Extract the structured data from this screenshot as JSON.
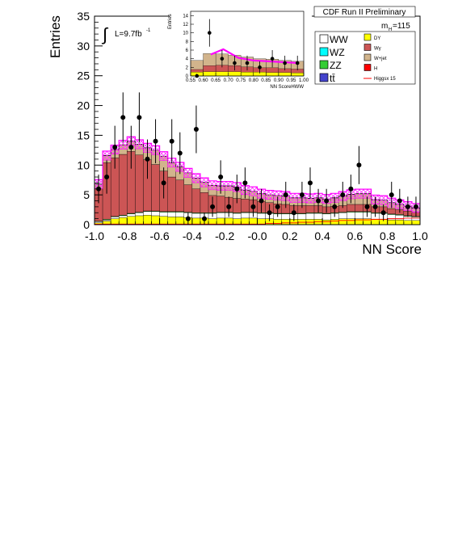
{
  "chart_data": {
    "type": "histogram",
    "title": "CDF Run II Preliminary",
    "xlabel": "NN Score",
    "ylabel": "Entries",
    "xlim": [
      -1.0,
      1.0
    ],
    "ylim": [
      0,
      35
    ],
    "x_ticks": [
      "-1.0",
      "-0.8",
      "-0.6",
      "-0.4",
      "-0.2",
      "-0.0",
      "0.2",
      "0.4",
      "0.6",
      "0.8",
      "1.0"
    ],
    "y_ticks": [
      "0",
      "5",
      "10",
      "15",
      "20",
      "25",
      "30",
      "35"
    ],
    "lumi_label": "L=9.7fb",
    "lumi_sup": "-1",
    "mass_label": "m",
    "mass_sub": "H",
    "mass_value": "=115",
    "bin_edges": [
      -1.0,
      -0.95,
      -0.9,
      -0.85,
      -0.8,
      -0.75,
      -0.7,
      -0.65,
      -0.6,
      -0.55,
      -0.5,
      -0.45,
      -0.4,
      -0.35,
      -0.3,
      -0.25,
      -0.2,
      -0.15,
      -0.1,
      -0.05,
      0.0,
      0.05,
      0.1,
      0.15,
      0.2,
      0.25,
      0.3,
      0.35,
      0.4,
      0.45,
      0.5,
      0.55,
      0.6,
      0.65,
      0.7,
      0.75,
      0.8,
      0.85,
      0.9,
      0.95,
      1.0
    ],
    "stack": [
      {
        "name": "DY",
        "color": "#ffff00",
        "values": [
          0.3,
          0.6,
          1.0,
          1.2,
          1.4,
          1.5,
          1.6,
          1.5,
          1.4,
          1.3,
          1.3,
          1.2,
          1.1,
          1.1,
          1.0,
          1.1,
          1.1,
          1.0,
          1.1,
          1.1,
          1.0,
          1.0,
          0.9,
          0.9,
          0.9,
          0.9,
          0.9,
          0.9,
          0.8,
          0.9,
          1.0,
          1.0,
          1.0,
          1.0,
          0.9,
          0.9,
          0.8,
          0.8,
          0.7,
          0.7
        ]
      },
      {
        "name": "WW",
        "color": "#ffffff",
        "values": [
          0.2,
          0.2,
          0.3,
          0.3,
          0.4,
          0.5,
          0.6,
          0.7,
          0.7,
          0.8,
          0.8,
          0.8,
          0.8,
          0.8,
          0.9,
          0.9,
          0.9,
          0.9,
          0.9,
          0.9,
          0.9,
          0.9,
          0.9,
          0.9,
          0.9,
          0.9,
          1.0,
          1.0,
          1.0,
          1.0,
          1.0,
          1.1,
          1.1,
          1.1,
          1.0,
          1.0,
          0.9,
          0.8,
          0.7,
          0.6
        ]
      },
      {
        "name": "ZZ",
        "color": "#33cc33",
        "values": [
          0.1,
          0.1,
          0.1,
          0.1,
          0.1,
          0.1,
          0.1,
          0.1,
          0.1,
          0.1,
          0.1,
          0.1,
          0.1,
          0.1,
          0.1,
          0.1,
          0.1,
          0.1,
          0.1,
          0.1,
          0.1,
          0.1,
          0.1,
          0.1,
          0.1,
          0.1,
          0.1,
          0.1,
          0.1,
          0.1,
          0.1,
          0.1,
          0.1,
          0.1,
          0.1,
          0.1,
          0.1,
          0.1,
          0.1,
          0.1
        ]
      },
      {
        "name": "Wγ",
        "color": "#cc5555",
        "values": [
          5.4,
          9.5,
          9.8,
          10.2,
          10.4,
          9.6,
          8.6,
          7.8,
          6.8,
          5.8,
          5.3,
          4.6,
          4.0,
          3.4,
          2.9,
          2.7,
          2.5,
          2.4,
          2.2,
          2.1,
          1.9,
          1.7,
          1.6,
          1.5,
          1.3,
          1.3,
          1.2,
          1.2,
          1.1,
          1.1,
          1.1,
          1.2,
          1.2,
          1.2,
          1.0,
          1.0,
          0.9,
          0.8,
          0.8,
          0.7
        ]
      },
      {
        "name": "W+jet",
        "color": "#d2b48c",
        "values": [
          0.8,
          1.2,
          1.4,
          1.6,
          1.7,
          1.8,
          2.0,
          2.4,
          2.5,
          2.4,
          2.2,
          2.0,
          1.8,
          1.7,
          1.7,
          1.7,
          1.9,
          1.9,
          1.5,
          1.4,
          1.3,
          1.3,
          1.4,
          1.4,
          1.3,
          1.3,
          1.2,
          1.3,
          1.3,
          1.4,
          1.6,
          1.7,
          1.8,
          1.8,
          1.2,
          1.1,
          1.0,
          0.9,
          0.8,
          0.7
        ]
      }
    ],
    "band_halfwidth": 0.75,
    "higgs": {
      "name": "Higgsx 15",
      "color": "#ff0000",
      "values": [
        0.1,
        0.1,
        0.1,
        0.1,
        0.1,
        0.1,
        0.1,
        0.1,
        0.1,
        0.1,
        0.1,
        0.1,
        0.1,
        0.1,
        0.1,
        0.1,
        0.1,
        0.1,
        0.1,
        0.1,
        0.1,
        0.2,
        0.2,
        0.3,
        0.3,
        0.4,
        0.4,
        0.5,
        0.5,
        0.6,
        0.7,
        0.7,
        0.8,
        0.8,
        0.9,
        0.9,
        1.0,
        1.0,
        1.1,
        1.1
      ]
    },
    "data": [
      {
        "x": -0.975,
        "y": 6,
        "err": 2.4
      },
      {
        "x": -0.925,
        "y": 8,
        "err": 2.8
      },
      {
        "x": -0.875,
        "y": 13,
        "err": 3.6
      },
      {
        "x": -0.825,
        "y": 18,
        "err": 4.2
      },
      {
        "x": -0.775,
        "y": 13,
        "err": 3.6
      },
      {
        "x": -0.725,
        "y": 18,
        "err": 4.2
      },
      {
        "x": -0.675,
        "y": 11,
        "err": 3.3
      },
      {
        "x": -0.625,
        "y": 14,
        "err": 3.7
      },
      {
        "x": -0.575,
        "y": 7,
        "err": 2.6
      },
      {
        "x": -0.525,
        "y": 14,
        "err": 3.7
      },
      {
        "x": -0.475,
        "y": 12,
        "err": 3.5
      },
      {
        "x": -0.425,
        "y": 1,
        "err": 1.0
      },
      {
        "x": -0.375,
        "y": 16,
        "err": 4.0
      },
      {
        "x": -0.325,
        "y": 1,
        "err": 1.0
      },
      {
        "x": -0.275,
        "y": 3,
        "err": 1.7
      },
      {
        "x": -0.225,
        "y": 8,
        "err": 2.8
      },
      {
        "x": -0.175,
        "y": 3,
        "err": 1.7
      },
      {
        "x": -0.125,
        "y": 6,
        "err": 2.4
      },
      {
        "x": -0.075,
        "y": 7,
        "err": 2.6
      },
      {
        "x": -0.025,
        "y": 3,
        "err": 1.7
      },
      {
        "x": 0.025,
        "y": 4,
        "err": 2.0
      },
      {
        "x": 0.075,
        "y": 2,
        "err": 1.4
      },
      {
        "x": 0.125,
        "y": 3,
        "err": 1.7
      },
      {
        "x": 0.175,
        "y": 5,
        "err": 2.2
      },
      {
        "x": 0.225,
        "y": 2,
        "err": 1.4
      },
      {
        "x": 0.275,
        "y": 5,
        "err": 2.2
      },
      {
        "x": 0.325,
        "y": 7,
        "err": 2.6
      },
      {
        "x": 0.375,
        "y": 4,
        "err": 2.0
      },
      {
        "x": 0.425,
        "y": 4,
        "err": 2.0
      },
      {
        "x": 0.475,
        "y": 3,
        "err": 1.7
      },
      {
        "x": 0.525,
        "y": 5,
        "err": 2.2
      },
      {
        "x": 0.575,
        "y": 6,
        "err": 2.4
      },
      {
        "x": 0.625,
        "y": 10,
        "err": 3.2
      },
      {
        "x": 0.675,
        "y": 3,
        "err": 1.7
      },
      {
        "x": 0.725,
        "y": 3,
        "err": 1.7
      },
      {
        "x": 0.775,
        "y": 2,
        "err": 1.4
      },
      {
        "x": 0.825,
        "y": 5,
        "err": 2.2
      },
      {
        "x": 0.875,
        "y": 4,
        "err": 2.0
      },
      {
        "x": 0.925,
        "y": 3,
        "err": 1.7
      },
      {
        "x": 0.975,
        "y": 3,
        "err": 1.7
      }
    ],
    "legend": [
      {
        "label": "WW",
        "color": "#ffffff",
        "column": 1
      },
      {
        "label": "WZ",
        "color": "#00ffff",
        "column": 1
      },
      {
        "label": "ZZ",
        "color": "#33cc33",
        "column": 1
      },
      {
        "label": "tt̄",
        "color": "#4444cc",
        "column": 1
      },
      {
        "label": "DY",
        "color": "#ffff00",
        "column": 2
      },
      {
        "label": "Wγ",
        "color": "#cc5555",
        "column": 2
      },
      {
        "label": "W+jet",
        "color": "#d2b48c",
        "column": 2
      },
      {
        "label": "H",
        "color": "#ff0000",
        "column": 2
      },
      {
        "label": "Higgsx 15",
        "color": "#ff0000",
        "column": 2,
        "style": "line"
      }
    ],
    "inset": {
      "type": "histogram",
      "xlabel": "NN ScoreHWW",
      "ylabel": "Entries",
      "xlim": [
        0.55,
        1.0
      ],
      "ylim": [
        0,
        15
      ],
      "x_ticks": [
        "0.55",
        "0.60",
        "0.65",
        "0.70",
        "0.75",
        "0.80",
        "0.85",
        "0.90",
        "0.95",
        "1.00"
      ],
      "y_ticks": [
        "0",
        "2",
        "4",
        "6",
        "8",
        "10",
        "12",
        "14"
      ],
      "bin_edges": [
        0.55,
        0.6,
        0.65,
        0.7,
        0.75,
        0.8,
        0.85,
        0.9,
        0.95,
        1.0
      ],
      "stack_total": [
        3.6,
        5.2,
        5.1,
        4.8,
        4.4,
        4.0,
        3.9,
        3.6,
        3.4
      ],
      "dy": [
        0.9,
        1.0,
        1.0,
        1.0,
        0.9,
        0.9,
        0.8,
        0.8,
        0.7
      ],
      "wgamma": [
        1.5,
        2.4,
        2.5,
        2.4,
        2.1,
        1.9,
        1.9,
        1.7,
        1.6
      ],
      "signal_x": [
        0.63,
        0.68,
        0.74,
        0.8,
        0.86,
        0.92,
        0.98
      ],
      "signal_y": [
        5.0,
        6.2,
        4.2,
        3.6,
        3.4,
        3.2,
        3.0
      ],
      "data": [
        {
          "x": 0.575,
          "y": 0,
          "err": 0.5
        },
        {
          "x": 0.625,
          "y": 10,
          "err": 3.2
        },
        {
          "x": 0.675,
          "y": 4,
          "err": 2.0
        },
        {
          "x": 0.725,
          "y": 3,
          "err": 1.7
        },
        {
          "x": 0.775,
          "y": 3,
          "err": 1.7
        },
        {
          "x": 0.825,
          "y": 2,
          "err": 1.4
        },
        {
          "x": 0.875,
          "y": 4,
          "err": 2.0
        },
        {
          "x": 0.925,
          "y": 3,
          "err": 1.7
        },
        {
          "x": 0.975,
          "y": 3,
          "err": 1.7
        }
      ]
    }
  }
}
